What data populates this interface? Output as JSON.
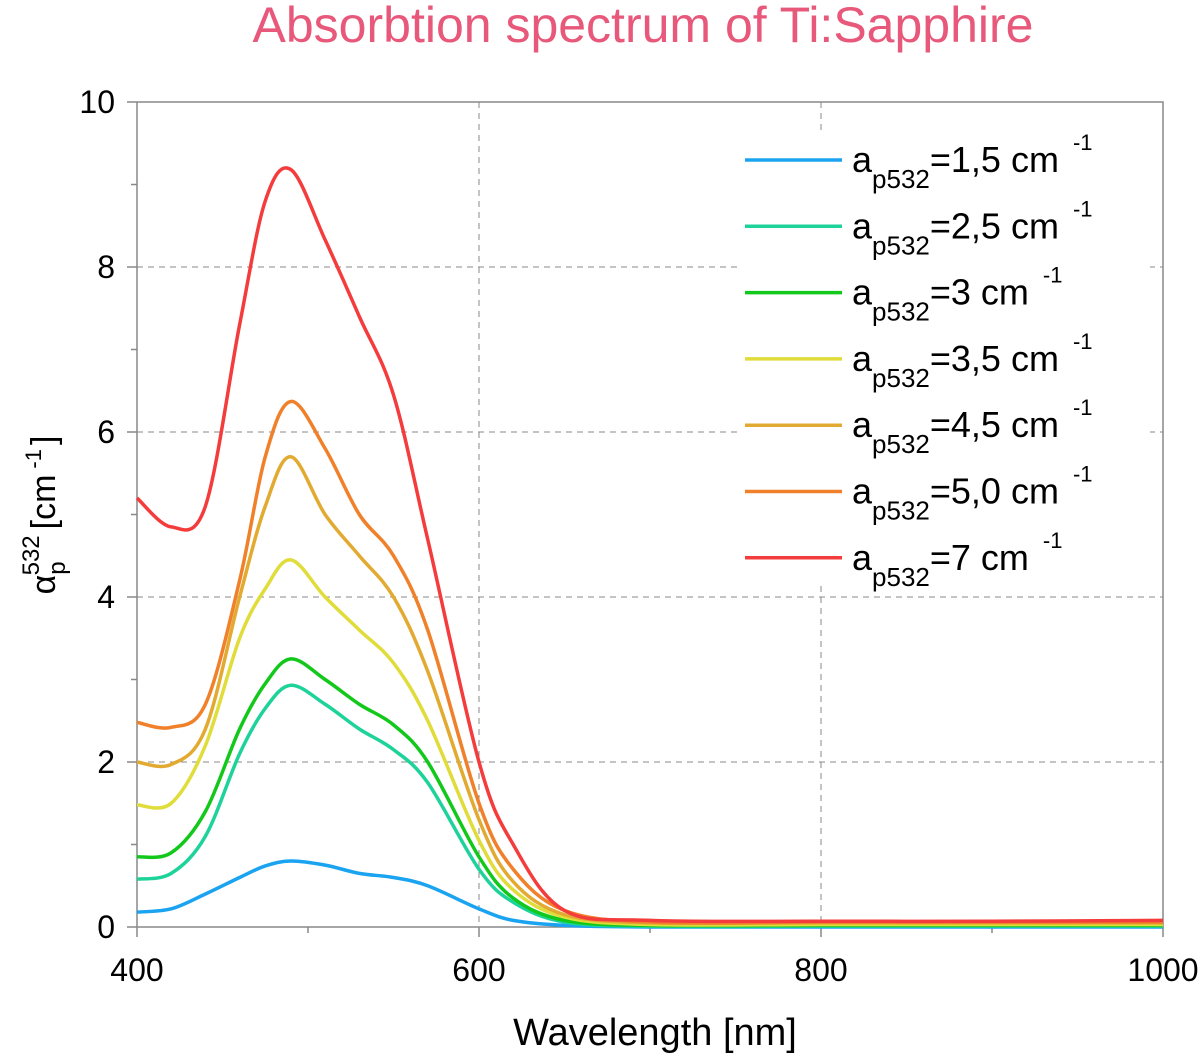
{
  "chart_data": {
    "type": "line",
    "title": "Absorbtion spectrum of Ti:Sapphire",
    "title_color": "#e8587a",
    "xlabel": "Wavelength [nm]",
    "ylabel": {
      "symbol": "α",
      "sub": "p",
      "sup": "532",
      "unit": "[cm",
      "unit_sup": "-1",
      "close": "]"
    },
    "xlim": [
      400,
      1000
    ],
    "ylim": [
      0,
      10
    ],
    "xticks": [
      "400",
      "600",
      "800",
      "1000"
    ],
    "yticks": [
      "0",
      "2",
      "4",
      "6",
      "8",
      "10"
    ],
    "grid": "dashed",
    "legend_placement": "top-right",
    "x": [
      400,
      420,
      440,
      460,
      475,
      490,
      510,
      530,
      550,
      570,
      600,
      620,
      650,
      700,
      800,
      900,
      1000
    ],
    "series": [
      {
        "name": "a",
        "sub": "p532",
        "value": "=1,5 cm",
        "sup": "-1",
        "color": "#1aa3f0",
        "values": [
          0.18,
          0.22,
          0.4,
          0.6,
          0.74,
          0.8,
          0.75,
          0.65,
          0.6,
          0.5,
          0.22,
          0.08,
          0.02,
          0.0,
          0.0,
          0.0,
          0.0
        ]
      },
      {
        "name": "a",
        "sub": "p532",
        "value": "=2,5 cm",
        "sup": "-1",
        "color": "#1ed39a",
        "values": [
          0.58,
          0.65,
          1.1,
          2.1,
          2.65,
          2.93,
          2.7,
          2.4,
          2.15,
          1.75,
          0.7,
          0.3,
          0.06,
          0.01,
          0.01,
          0.01,
          0.01
        ]
      },
      {
        "name": "a",
        "sub": "p532",
        "value": "=3 cm",
        "sup": "-1",
        "color": "#12c81a",
        "values": [
          0.85,
          0.9,
          1.4,
          2.4,
          2.95,
          3.25,
          3.0,
          2.7,
          2.45,
          2.0,
          0.85,
          0.35,
          0.08,
          0.02,
          0.02,
          0.02,
          0.02
        ]
      },
      {
        "name": "a",
        "sub": "p532",
        "value": "=3,5 cm",
        "sup": "-1",
        "color": "#e0dc3a",
        "values": [
          1.48,
          1.5,
          2.2,
          3.5,
          4.1,
          4.45,
          4.0,
          3.6,
          3.2,
          2.5,
          1.05,
          0.45,
          0.12,
          0.03,
          0.03,
          0.03,
          0.03
        ]
      },
      {
        "name": "a",
        "sub": "p532",
        "value": "=4,5 cm",
        "sup": "-1",
        "color": "#e2aa30",
        "values": [
          2.0,
          1.97,
          2.4,
          4.0,
          5.1,
          5.7,
          5.0,
          4.5,
          4.0,
          3.1,
          1.3,
          0.55,
          0.15,
          0.05,
          0.05,
          0.05,
          0.05
        ]
      },
      {
        "name": "a",
        "sub": "p532",
        "value": "=5,0 cm",
        "sup": "-1",
        "color": "#f0802a",
        "values": [
          2.48,
          2.42,
          2.7,
          4.2,
          5.7,
          6.37,
          5.8,
          5.0,
          4.5,
          3.6,
          1.5,
          0.7,
          0.2,
          0.06,
          0.06,
          0.06,
          0.06
        ]
      },
      {
        "name": "a",
        "sub": "p532",
        "value": "=7 cm",
        "sup": "-1",
        "color": "#f53c3c",
        "values": [
          5.2,
          4.85,
          5.1,
          7.3,
          8.8,
          9.18,
          8.33,
          7.4,
          6.45,
          4.7,
          2.0,
          1.0,
          0.2,
          0.08,
          0.07,
          0.07,
          0.08
        ]
      }
    ]
  }
}
